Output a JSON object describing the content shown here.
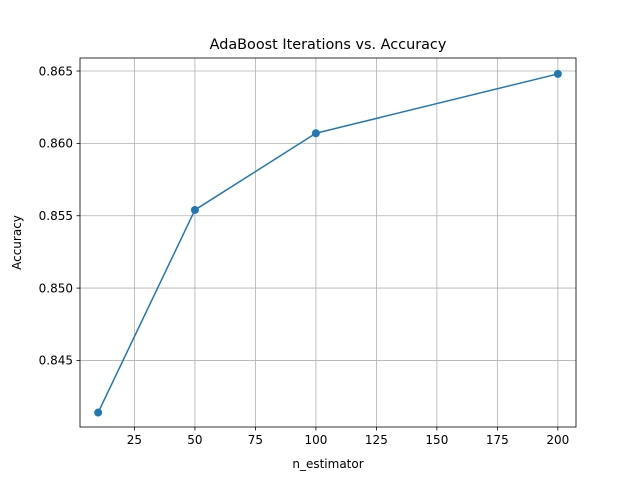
{
  "chart_data": {
    "type": "line",
    "title": "AdaBoost Iterations vs. Accuracy",
    "xlabel": "n_estimator",
    "ylabel": "Accuracy",
    "xlim": [
      2.5,
      207.5
    ],
    "ylim": [
      0.8404,
      0.8659
    ],
    "xticks": [
      25,
      50,
      75,
      100,
      125,
      150,
      175,
      200
    ],
    "yticks": [
      0.845,
      0.85,
      0.855,
      0.86,
      0.865
    ],
    "xtick_labels": [
      "25",
      "50",
      "75",
      "100",
      "125",
      "150",
      "175",
      "200"
    ],
    "ytick_labels": [
      "0.845",
      "0.850",
      "0.855",
      "0.860",
      "0.865"
    ],
    "grid": true,
    "series": [
      {
        "x": [
          10,
          50,
          100,
          200
        ],
        "values": [
          0.8414,
          0.8554,
          0.8607,
          0.8648
        ],
        "color": "#1f77b4",
        "marker": "circle"
      }
    ]
  }
}
